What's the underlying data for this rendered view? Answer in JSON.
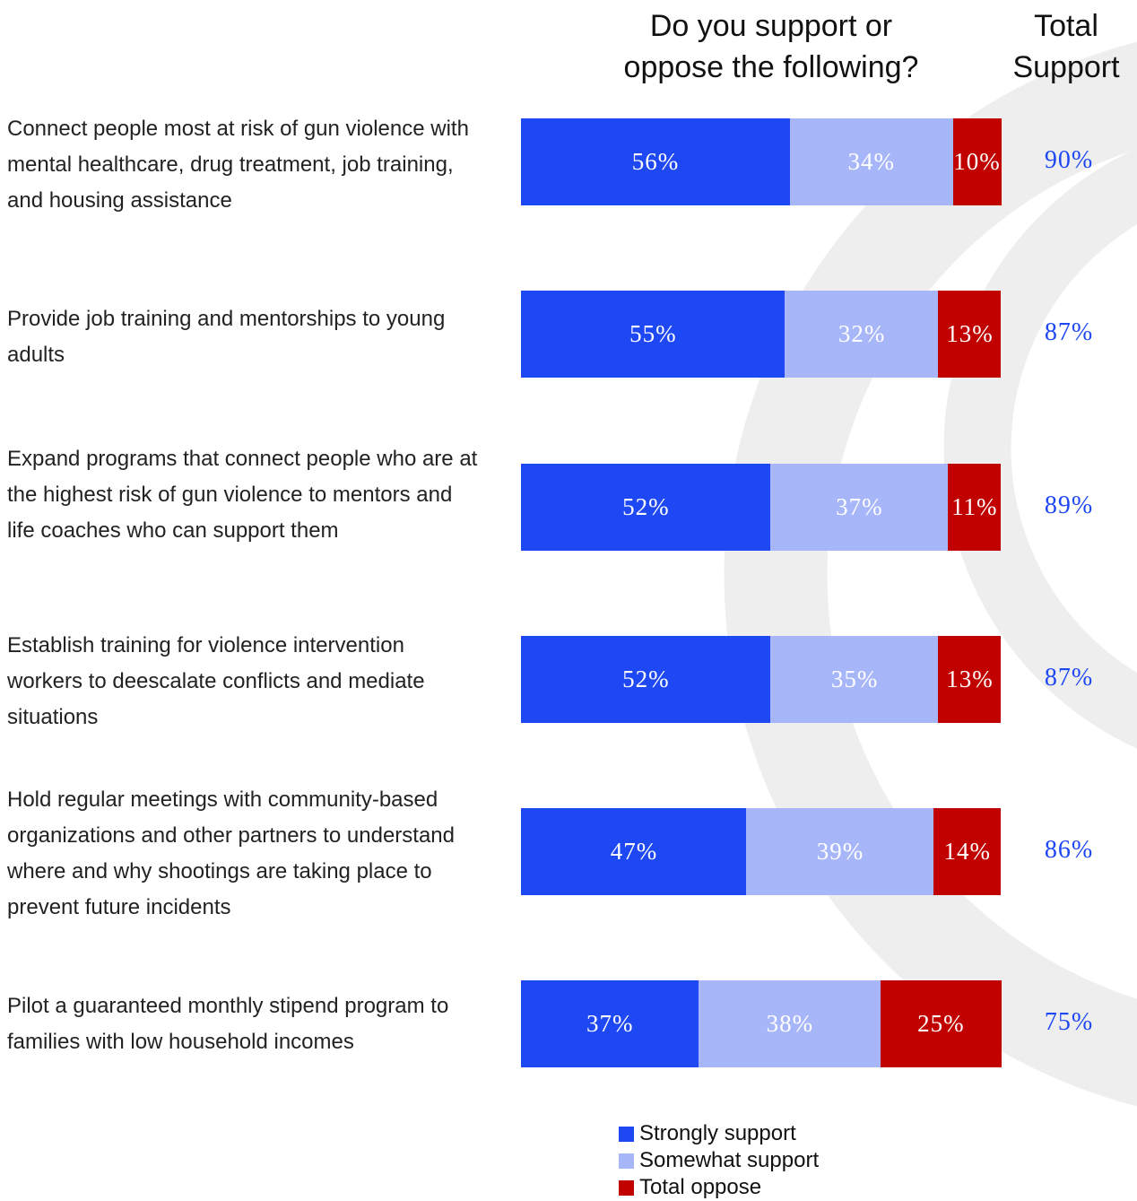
{
  "colors": {
    "strongly_support": "#1f48f5",
    "somewhat_support": "#a7b6f9",
    "total_oppose": "#c10000",
    "total_support_text": "#1f48f5",
    "background_ring": "#eeeeee"
  },
  "chart_data": {
    "type": "bar",
    "orientation": "horizontal",
    "stacked": true,
    "title": "Do you support or oppose the following?",
    "total_column_title": "Total Support",
    "unit": "%",
    "categories": [
      "Connect people most at risk of gun violence with mental healthcare, drug treatment, job training, and housing assistance",
      "Provide job training and mentorships to young adults",
      "Expand programs that connect people who are at the highest risk of gun violence to mentors and life coaches who can support them",
      "Establish training for violence intervention workers to deescalate conflicts and mediate situations",
      "Hold regular meetings with community-based organizations and other partners to understand where and why shootings are taking place to prevent future incidents",
      "Pilot a guaranteed monthly stipend program to families with low household incomes"
    ],
    "series": [
      {
        "name": "Strongly support",
        "values": [
          56,
          55,
          52,
          52,
          47,
          37
        ]
      },
      {
        "name": "Somewhat support",
        "values": [
          34,
          32,
          37,
          35,
          39,
          38
        ]
      },
      {
        "name": "Total oppose",
        "values": [
          10,
          13,
          11,
          13,
          14,
          25
        ]
      }
    ],
    "total_support": [
      90,
      87,
      89,
      87,
      86,
      75
    ],
    "legend_position": "bottom",
    "grid": false
  }
}
